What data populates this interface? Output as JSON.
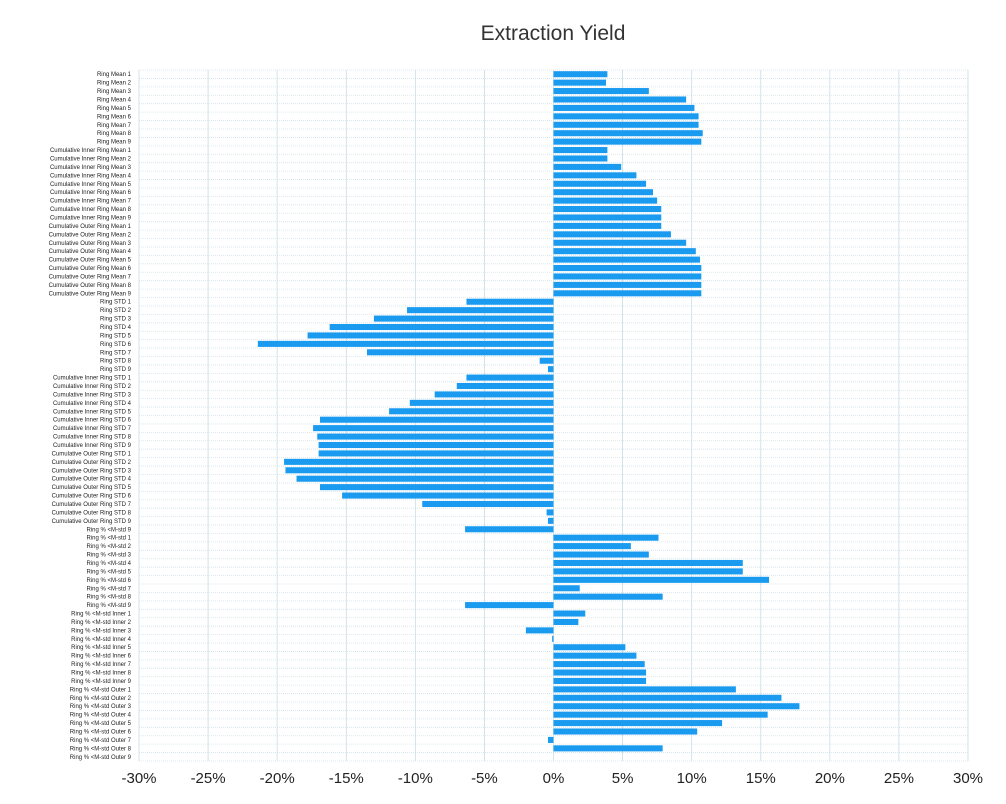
{
  "chart_data": {
    "type": "bar",
    "orientation": "horizontal",
    "title": "Extraction Yield",
    "xlabel": "",
    "ylabel": "",
    "xlim": [
      -0.3,
      0.3
    ],
    "x_ticks": [
      "-30%",
      "-25%",
      "-20%",
      "-15%",
      "-10%",
      "-5%",
      "0%",
      "5%",
      "10%",
      "15%",
      "20%",
      "25%",
      "30%"
    ],
    "grid": true,
    "bar_color": "#1a9bf0",
    "categories": [
      "Ring Mean 1",
      "Ring Mean 2",
      "Ring Mean 3",
      "Ring Mean 4",
      "Ring Mean 5",
      "Ring Mean 6",
      "Ring Mean 7",
      "Ring Mean 8",
      "Ring Mean 9",
      "Cumulative Inner Ring Mean 1",
      "Cumulative Inner Ring Mean 2",
      "Cumulative Inner Ring Mean 3",
      "Cumulative Inner Ring Mean 4",
      "Cumulative Inner Ring Mean 5",
      "Cumulative Inner Ring Mean 6",
      "Cumulative Inner Ring Mean 7",
      "Cumulative Inner Ring Mean 8",
      "Cumulative Inner Ring Mean 9",
      "Cumulative Outer Ring Mean 1",
      "Cumulative Outer Ring Mean 2",
      "Cumulative Outer Ring Mean 3",
      "Cumulative Outer Ring Mean 4",
      "Cumulative Outer Ring Mean 5",
      "Cumulative Outer Ring Mean 6",
      "Cumulative Outer Ring Mean 7",
      "Cumulative Outer Ring Mean 8",
      "Cumulative Outer Ring Mean 9",
      "Ring STD 1",
      "Ring STD 2",
      "Ring STD 3",
      "Ring STD 4",
      "Ring STD 5",
      "Ring STD 6",
      "Ring STD 7",
      "Ring STD 8",
      "Ring STD 9",
      "Cumulative Inner Ring STD 1",
      "Cumulative Inner Ring STD 2",
      "Cumulative Inner Ring STD 3",
      "Cumulative Inner Ring STD 4",
      "Cumulative Inner Ring STD 5",
      "Cumulative Inner Ring STD 6",
      "Cumulative Inner Ring STD 7",
      "Cumulative Inner Ring STD 8",
      "Cumulative Inner Ring STD 9",
      "Cumulative Outer Ring STD 1",
      "Cumulative Outer Ring STD 2",
      "Cumulative Outer Ring STD 3",
      "Cumulative Outer Ring STD 4",
      "Cumulative Outer Ring STD 5",
      "Cumulative Outer Ring STD 6",
      "Cumulative Outer Ring STD 7",
      "Cumulative Outer Ring STD 8",
      "Cumulative Outer Ring STD 9",
      "Ring % <M-std 9",
      "Ring % <M-std 1",
      "Ring % <M-std 2",
      "Ring % <M-std 3",
      "Ring % <M-std 4",
      "Ring % <M-std 5",
      "Ring % <M-std 6",
      "Ring % <M-std 7",
      "Ring % <M-std 8",
      "Ring % <M-std 9",
      "Ring % <M-std Inner 1",
      "Ring % <M-std Inner 2",
      "Ring % <M-std Inner 3",
      "Ring % <M-std Inner 4",
      "Ring % <M-std Inner 5",
      "Ring % <M-std Inner 6",
      "Ring % <M-std Inner 7",
      "Ring % <M-std Inner 8",
      "Ring % <M-std Inner 9",
      "Ring % <M-std Outer 1",
      "Ring % <M-std Outer 2",
      "Ring % <M-std Outer 3",
      "Ring % <M-std Outer 4",
      "Ring % <M-std Outer 5",
      "Ring % <M-std Outer 6",
      "Ring % <M-std Outer 7",
      "Ring % <M-std Outer 8",
      "Ring % <M-std Outer 9"
    ],
    "values": [
      0.039,
      0.038,
      0.069,
      0.096,
      0.102,
      0.105,
      0.105,
      0.108,
      0.107,
      0.039,
      0.039,
      0.049,
      0.06,
      0.067,
      0.072,
      0.075,
      0.078,
      0.078,
      0.078,
      0.085,
      0.096,
      0.103,
      0.106,
      0.107,
      0.107,
      0.107,
      0.107,
      -0.063,
      -0.106,
      -0.13,
      -0.162,
      -0.178,
      -0.214,
      -0.135,
      -0.01,
      -0.004,
      -0.063,
      -0.07,
      -0.086,
      -0.104,
      -0.119,
      -0.169,
      -0.174,
      -0.171,
      -0.17,
      -0.17,
      -0.195,
      -0.194,
      -0.186,
      -0.169,
      -0.153,
      -0.095,
      -0.005,
      -0.004,
      -0.064,
      0.076,
      0.056,
      0.069,
      0.137,
      0.137,
      0.156,
      0.019,
      0.079,
      -0.064,
      0.023,
      0.018,
      -0.02,
      -0.001,
      0.052,
      0.06,
      0.066,
      0.067,
      0.067,
      0.132,
      0.165,
      0.178,
      0.155,
      0.122,
      0.104,
      -0.004,
      0.079,
      0.0
    ]
  }
}
